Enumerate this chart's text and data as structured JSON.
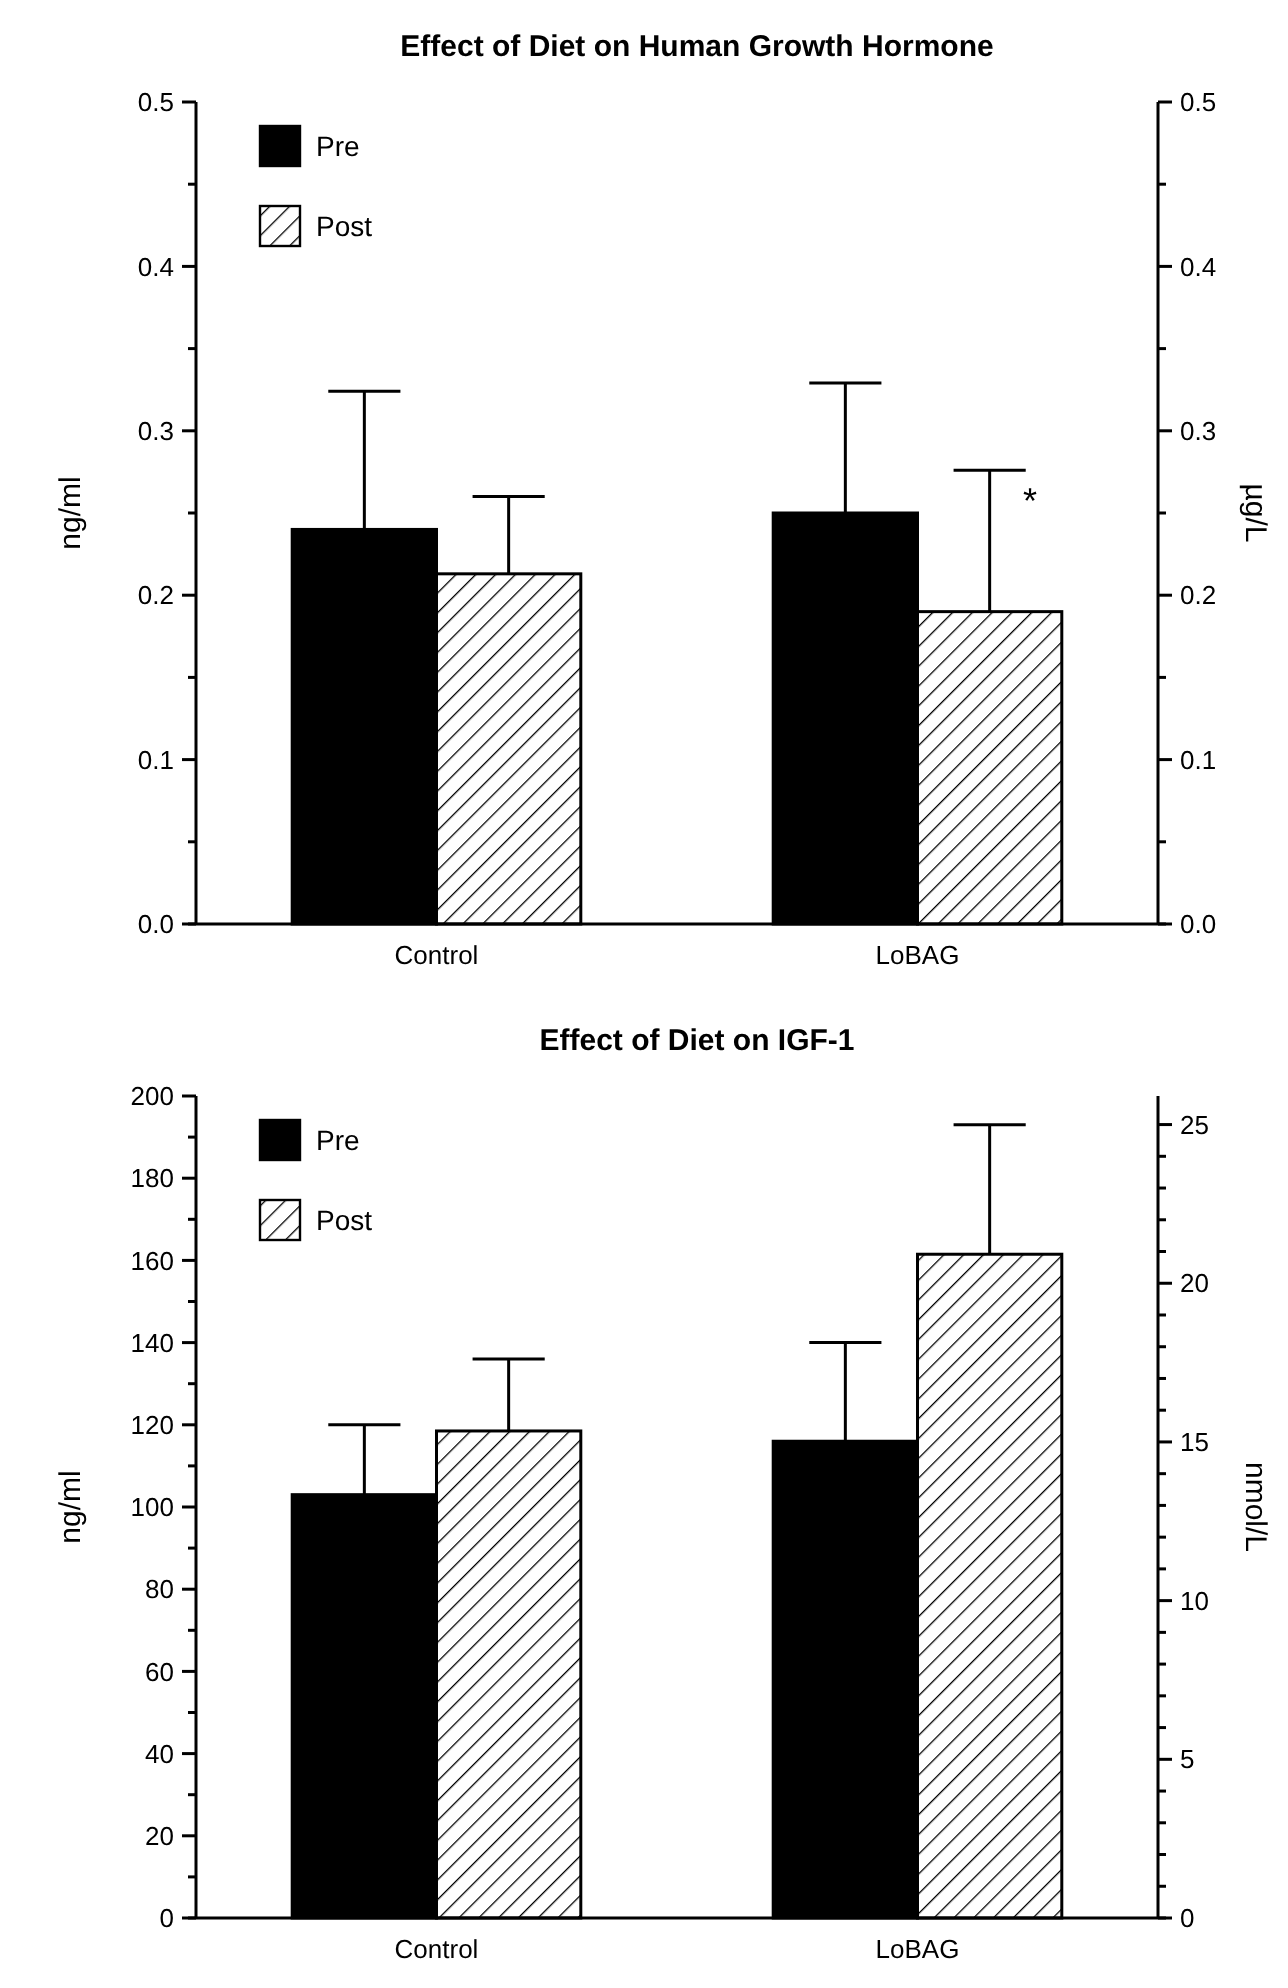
{
  "chart_data": [
    {
      "type": "bar",
      "title": "Effect of Diet on Human Growth Hormone",
      "ylabel": "ng/ml",
      "y2label": "µg/L",
      "categories": [
        "Control",
        "LoBAG"
      ],
      "legend": "top left",
      "grid": false,
      "series": [
        {
          "name": "Pre",
          "color": "#000000",
          "values": [
            0.24,
            0.25
          ],
          "errors": [
            [
              0.24,
              0.324
            ],
            [
              0.25,
              0.329
            ]
          ]
        },
        {
          "name": "Post",
          "color": "#ffffff",
          "values": [
            0.213,
            0.19
          ],
          "errors": [
            [
              0.213,
              0.26
            ],
            [
              0.19,
              0.276
            ]
          ]
        }
      ],
      "ylim": [
        0,
        0.5
      ],
      "yticks": [
        {
          "value": 0,
          "label": "0.0"
        },
        {
          "value": 0.05,
          "label": null
        },
        {
          "value": 0.1,
          "label": "0.1"
        },
        {
          "value": 0.15,
          "label": null
        },
        {
          "value": 0.2,
          "label": "0.2"
        },
        {
          "value": 0.25,
          "label": null
        },
        {
          "value": 0.3,
          "label": "0.3"
        },
        {
          "value": 0.35,
          "label": null
        },
        {
          "value": 0.4,
          "label": "0.4"
        },
        {
          "value": 0.45,
          "label": null
        },
        {
          "value": 0.5,
          "label": "0.5"
        }
      ],
      "y2lim": [
        0,
        0.5
      ],
      "y2ticks": [
        {
          "value": 0,
          "label": "0.0"
        },
        {
          "value": 0.05,
          "label": null
        },
        {
          "value": 0.1,
          "label": "0.1"
        },
        {
          "value": 0.15,
          "label": null
        },
        {
          "value": 0.2,
          "label": "0.2"
        },
        {
          "value": 0.25,
          "label": null
        },
        {
          "value": 0.3,
          "label": "0.3"
        },
        {
          "value": 0.35,
          "label": null
        },
        {
          "value": 0.4,
          "label": "0.4"
        },
        {
          "value": 0.45,
          "label": null
        },
        {
          "value": 0.5,
          "label": "0.5"
        }
      ]
    },
    {
      "type": "bar",
      "title": "Effect of Diet on IGF-1",
      "ylabel": "ng/ml",
      "y2label": "nmol/L",
      "categories": [
        "Control",
        "LoBAG"
      ],
      "legend": "top left",
      "grid": false,
      "series": [
        {
          "name": "Pre",
          "color": "#000000",
          "values": [
            103,
            116
          ],
          "errors": [
            [
              103,
              120
            ],
            [
              116,
              140
            ]
          ]
        },
        {
          "name": "Post",
          "color": "#ffffff",
          "values": [
            118.5,
            161.5
          ],
          "errors": [
            [
              118.5,
              136
            ],
            [
              161.5,
              193
            ]
          ]
        }
      ],
      "annotations": [
        "*"
      ],
      "ylim": [
        0,
        200
      ],
      "yticks": [
        0,
        {
          "value": 10,
          "label": null
        },
        20,
        {
          "value": 30,
          "label": null
        },
        40,
        {
          "value": 50,
          "label": null
        },
        60,
        {
          "value": 70,
          "label": null
        },
        80,
        {
          "value": 90,
          "label": null
        },
        100,
        {
          "value": 110,
          "label": null
        },
        120,
        {
          "value": 130,
          "label": null
        },
        140,
        {
          "value": 150,
          "label": null
        },
        160,
        {
          "value": 170,
          "label": null
        },
        180,
        {
          "value": 190,
          "label": null
        },
        200
      ],
      "y2lim": [
        0,
        25.9
      ],
      "y2ticks": [
        0,
        {
          "value": 1,
          "label": null
        },
        {
          "value": 2,
          "label": null
        },
        {
          "value": 3,
          "label": null
        },
        {
          "value": 4,
          "label": null
        },
        5,
        {
          "value": 6,
          "label": null
        },
        {
          "value": 7,
          "label": null
        },
        {
          "value": 8,
          "label": null
        },
        {
          "value": 9,
          "label": null
        },
        10,
        {
          "value": 11,
          "label": null
        },
        {
          "value": 12,
          "label": null
        },
        {
          "value": 13,
          "label": null
        },
        {
          "value": 14,
          "label": null
        },
        15,
        {
          "value": 16,
          "label": null
        },
        {
          "value": 17,
          "label": null
        },
        {
          "value": 18,
          "label": null
        },
        {
          "value": 19,
          "label": null
        },
        20,
        {
          "value": 21,
          "label": null
        },
        {
          "value": 22,
          "label": null
        },
        {
          "value": 23,
          "label": null
        },
        {
          "value": 24,
          "label": null
        },
        25
      ]
    }
  ]
}
